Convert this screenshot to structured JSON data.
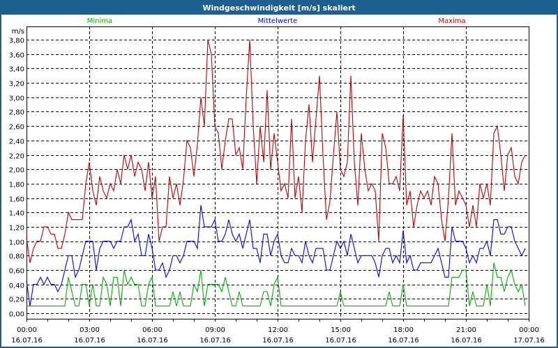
{
  "window": {
    "title": "Windgeschwindigkeit [m/s] skaliert"
  },
  "chart_data": {
    "type": "line",
    "title": "Windgeschwindigkeit [m/s] skaliert",
    "ylabel": "m/s",
    "xlabel": "",
    "ylim": [
      0,
      4.0
    ],
    "y_ticks": [
      "0,00",
      "0,20",
      "0,40",
      "0,60",
      "0,80",
      "1,00",
      "1,20",
      "1,40",
      "1,60",
      "1,80",
      "2,00",
      "2,20",
      "2,40",
      "2,60",
      "2,80",
      "3,00",
      "3,20",
      "3,40",
      "3,60",
      "3,80"
    ],
    "x_ticks": [
      {
        "time": "00:00",
        "date": "16.07.16"
      },
      {
        "time": "03:00",
        "date": "16.07.16"
      },
      {
        "time": "06:00",
        "date": "16.07.16"
      },
      {
        "time": "09:00",
        "date": "16.07.16"
      },
      {
        "time": "12:00",
        "date": "16.07.16"
      },
      {
        "time": "15:00",
        "date": "16.07.16"
      },
      {
        "time": "18:00",
        "date": "16.07.16"
      },
      {
        "time": "21:00",
        "date": "16.07.16"
      },
      {
        "time": "00:00",
        "date": "17.07.16"
      }
    ],
    "x_range_hours": [
      0,
      24
    ],
    "interval_minutes": 10,
    "grid": true,
    "series": [
      {
        "name": "Minima",
        "color": "#00b000",
        "legend": "top-left",
        "values": [
          0.1,
          0.1,
          0.1,
          0.1,
          0.1,
          0.1,
          0.1,
          0.1,
          0.1,
          0.1,
          0.1,
          0.1,
          0.5,
          0.3,
          0.1,
          0.1,
          0.4,
          0.4,
          0.1,
          0.4,
          0.1,
          0.1,
          0.5,
          0.4,
          0.1,
          0.5,
          0.5,
          0.1,
          0.6,
          0.4,
          0.5,
          0.4,
          0.4,
          0.1,
          0.1,
          0.4,
          0.5,
          0.1,
          0.1,
          0.1,
          0.1,
          0.1,
          0.3,
          0.1,
          0.3,
          0.1,
          0.1,
          0.1,
          0.4,
          0.3,
          0.6,
          0.1,
          0.4,
          0.4,
          0.4,
          0.4,
          0.3,
          0.5,
          0.3,
          0.1,
          0.1,
          0.3,
          0.1,
          0.1,
          0.1,
          0.1,
          0.1,
          0.1,
          0.3,
          0.3,
          0.1,
          0.4,
          0.5,
          0.1,
          0.1,
          0.1,
          0.1,
          0.1,
          0.1,
          0.1,
          0.1,
          0.1,
          0.1,
          0.1,
          0.1,
          0.1,
          0.1,
          0.1,
          0.1,
          0.1,
          0.3,
          0.1,
          0.1,
          0.1,
          0.1,
          0.1,
          0.1,
          0.1,
          0.1,
          0.1,
          0.1,
          0.1,
          0.1,
          0.1,
          0.3,
          0.1,
          0.1,
          0.1,
          0.4,
          0.1,
          0.1,
          0.1,
          0.1,
          0.1,
          0.1,
          0.1,
          0.1,
          0.1,
          0.1,
          0.1,
          0.1,
          0.1,
          0.5,
          0.5,
          0.5,
          0.6,
          0.6,
          0.1,
          0.3,
          0.1,
          0.1,
          0.1,
          0.4,
          0.1,
          0.7,
          0.5,
          0.5,
          0.3,
          0.5,
          0.6,
          0.4,
          0.3,
          0.4,
          0.1
        ]
      },
      {
        "name": "Mittelwerte",
        "color": "#0000ff",
        "legend": "top-center",
        "values": [
          0.45,
          0.1,
          0.4,
          0.4,
          0.5,
          0.4,
          0.5,
          0.4,
          0.4,
          0.3,
          0.4,
          0.6,
          0.8,
          0.8,
          0.5,
          0.6,
          0.8,
          1.0,
          1.0,
          1.0,
          0.6,
          0.9,
          1.0,
          1.0,
          1.0,
          0.9,
          1.0,
          1.0,
          1.2,
          1.2,
          1.3,
          1.0,
          1.1,
          0.8,
          0.8,
          1.1,
          0.9,
          0.6,
          0.6,
          0.7,
          0.5,
          0.6,
          0.8,
          0.8,
          0.7,
          0.8,
          1.0,
          1.0,
          1.0,
          0.9,
          1.5,
          1.2,
          1.2,
          1.2,
          1.3,
          1.0,
          1.0,
          1.1,
          1.3,
          1.1,
          1.0,
          1.1,
          0.9,
          1.1,
          1.3,
          0.9,
          0.9,
          0.7,
          1.1,
          1.1,
          0.8,
          1.0,
          1.1,
          0.8,
          0.7,
          0.7,
          0.9,
          0.8,
          0.8,
          0.7,
          1.0,
          0.8,
          0.7,
          0.9,
          0.9,
          0.9,
          0.6,
          0.6,
          0.8,
          1.0,
          0.9,
          1.0,
          0.8,
          1.1,
          0.9,
          0.7,
          0.8,
          0.8,
          0.8,
          0.8,
          0.7,
          0.5,
          0.8,
          0.9,
          0.9,
          0.7,
          0.8,
          0.7,
          1.15,
          0.7,
          0.8,
          0.6,
          0.6,
          0.7,
          0.7,
          0.7,
          0.7,
          0.8,
          0.9,
          0.7,
          0.5,
          0.5,
          1.2,
          1.0,
          1.0,
          1.0,
          0.9,
          0.7,
          0.8,
          0.7,
          0.9,
          0.9,
          1.0,
          0.8,
          1.3,
          1.3,
          1.1,
          1.1,
          1.2,
          1.2,
          1.0,
          0.9,
          0.8,
          0.9
        ]
      },
      {
        "name": "Maxima",
        "color": "#c00000",
        "legend": "top-right",
        "values": [
          1.05,
          0.7,
          0.9,
          1.0,
          1.0,
          1.2,
          1.2,
          1.1,
          1.1,
          0.9,
          0.9,
          1.1,
          1.4,
          1.3,
          1.3,
          1.3,
          1.3,
          1.8,
          2.1,
          1.7,
          1.5,
          1.9,
          1.7,
          1.6,
          1.8,
          1.7,
          2.0,
          1.8,
          2.2,
          2.0,
          2.2,
          1.9,
          2.1,
          2.0,
          1.7,
          2.1,
          1.6,
          1.9,
          1.0,
          1.2,
          1.2,
          1.9,
          1.6,
          1.8,
          1.5,
          1.85,
          2.4,
          2.3,
          1.9,
          2.35,
          3.0,
          2.6,
          3.8,
          3.6,
          2.6,
          2.5,
          2.0,
          2.4,
          2.7,
          2.7,
          2.2,
          2.3,
          2.0,
          3.0,
          3.8,
          2.6,
          1.8,
          2.6,
          2.1,
          3.1,
          2.0,
          2.5,
          2.1,
          1.7,
          1.8,
          1.6,
          2.7,
          1.6,
          1.9,
          1.4,
          2.4,
          2.9,
          2.1,
          2.7,
          3.3,
          2.2,
          1.3,
          1.55,
          2.2,
          2.8,
          2.0,
          1.9,
          2.1,
          3.3,
          2.1,
          1.5,
          2.5,
          2.0,
          1.7,
          1.8,
          1.7,
          1.0,
          2.5,
          2.3,
          1.8,
          1.8,
          1.9,
          1.7,
          2.75,
          1.5,
          1.7,
          1.2,
          1.5,
          1.7,
          1.6,
          1.7,
          1.5,
          1.9,
          1.8,
          1.3,
          1.0,
          1.6,
          2.5,
          1.5,
          1.7,
          1.6,
          1.5,
          1.2,
          1.5,
          1.2,
          1.8,
          1.6,
          1.8,
          1.5,
          2.5,
          2.6,
          2.2,
          1.7,
          2.2,
          2.3,
          1.9,
          1.8,
          2.1,
          2.2
        ]
      }
    ]
  }
}
